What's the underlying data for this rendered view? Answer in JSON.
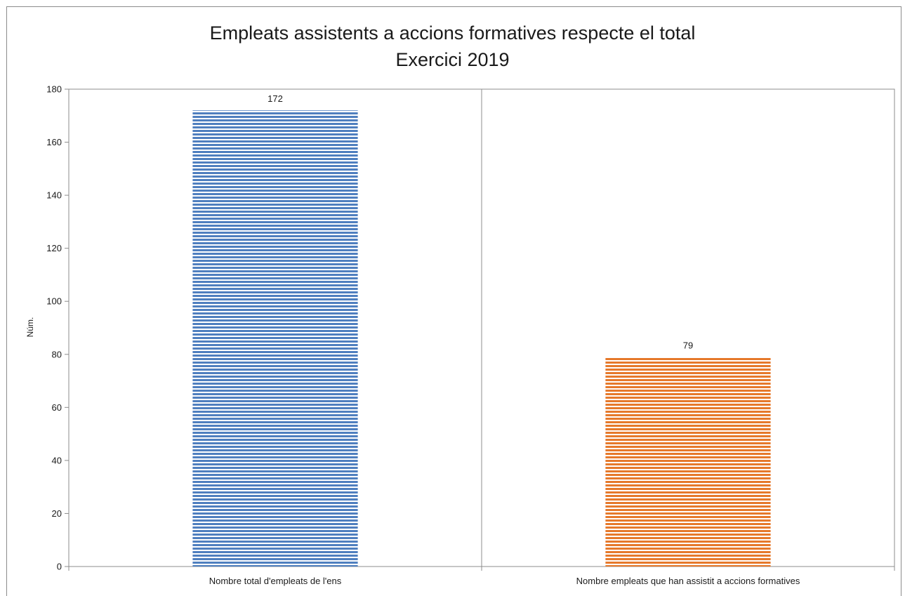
{
  "chart_data": {
    "type": "bar",
    "title": "Empleats assistents a accions formatives respecte el total",
    "subtitle": "Exercici 2019",
    "ylabel": "Núm.",
    "xlabel": "",
    "categories": [
      "Nombre total d'empleats de l'ens",
      "Nombre empleats que han assistit a accions formatives"
    ],
    "values": [
      172,
      79
    ],
    "data_labels": [
      "172",
      "79"
    ],
    "colors": [
      "#4f7fbf",
      "#e6792b"
    ],
    "ylim": [
      0,
      180
    ],
    "yticks": [
      0,
      20,
      40,
      60,
      80,
      100,
      120,
      140,
      160,
      180
    ],
    "grid": false,
    "legend": "none"
  }
}
